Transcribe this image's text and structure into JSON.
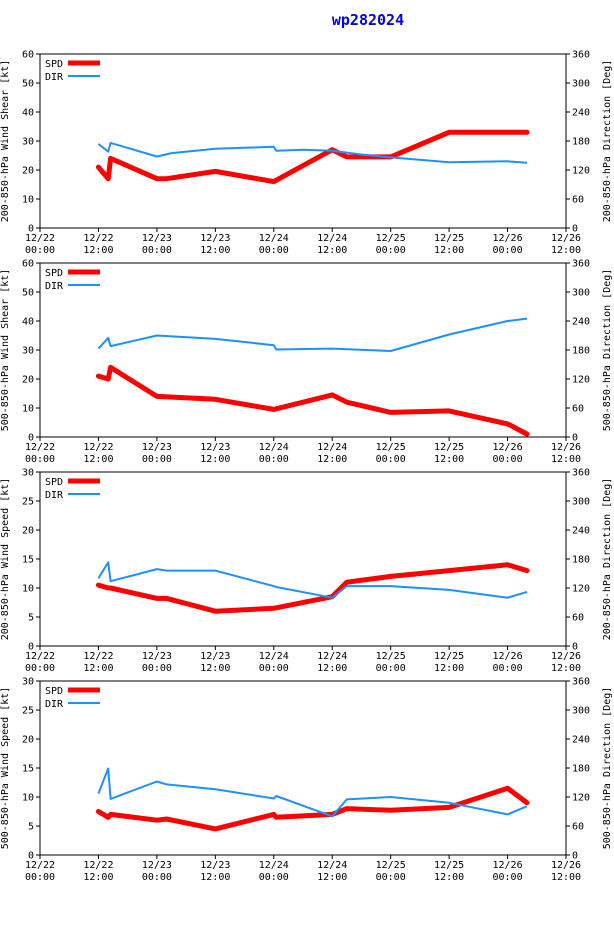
{
  "title": "wp282024",
  "colors": {
    "spd": "#ff0000",
    "dir": "#1e90ff",
    "title": "#0000ee"
  },
  "legend": {
    "spd": "SPD",
    "dir": "DIR"
  },
  "x_ticks": [
    {
      "t": 0,
      "l1": "12/22",
      "l2": "00:00"
    },
    {
      "t": 12,
      "l1": "12/22",
      "l2": "12:00"
    },
    {
      "t": 24,
      "l1": "12/23",
      "l2": "00:00"
    },
    {
      "t": 36,
      "l1": "12/23",
      "l2": "12:00"
    },
    {
      "t": 48,
      "l1": "12/24",
      "l2": "00:00"
    },
    {
      "t": 60,
      "l1": "12/24",
      "l2": "12:00"
    },
    {
      "t": 72,
      "l1": "12/25",
      "l2": "00:00"
    },
    {
      "t": 84,
      "l1": "12/25",
      "l2": "12:00"
    },
    {
      "t": 96,
      "l1": "12/26",
      "l2": "00:00"
    },
    {
      "t": 108,
      "l1": "12/26",
      "l2": "12:00"
    }
  ],
  "chart_data": [
    {
      "type": "line",
      "title": "wp282024",
      "ylabel": "200-850-hPa Wind Shear [kt]",
      "y2label": "200-850-hPa Direction [Deg]",
      "xlim": [
        0,
        108
      ],
      "ylim": [
        0,
        60
      ],
      "y_ticks": [
        0,
        10,
        20,
        30,
        40,
        50,
        60
      ],
      "y2lim": [
        0,
        360
      ],
      "y2_ticks": [
        0,
        60,
        120,
        180,
        240,
        300,
        360
      ],
      "series": [
        {
          "name": "SPD",
          "axis": "left",
          "x": [
            12,
            14,
            14.5,
            24,
            26,
            36,
            48,
            60,
            63,
            72,
            84,
            96,
            100
          ],
          "y": [
            21,
            17,
            24,
            17,
            17,
            19.5,
            16,
            27,
            24.5,
            24.5,
            33,
            33,
            33
          ]
        },
        {
          "name": "DIR",
          "axis": "right",
          "x": [
            12,
            14,
            14.5,
            24,
            27,
            36,
            48,
            48.5,
            54,
            60,
            66,
            72,
            84,
            96,
            100
          ],
          "y": [
            174,
            158,
            176,
            148,
            155,
            164,
            168,
            160,
            162,
            160,
            152,
            146,
            136,
            138,
            135
          ]
        }
      ]
    },
    {
      "type": "line",
      "ylabel": "500-850-hPa Wind Shear [kt]",
      "y2label": "500-850-hPa Direction [Deg]",
      "xlim": [
        0,
        108
      ],
      "ylim": [
        0,
        60
      ],
      "y_ticks": [
        0,
        10,
        20,
        30,
        40,
        50,
        60
      ],
      "y2lim": [
        0,
        360
      ],
      "y2_ticks": [
        0,
        60,
        120,
        180,
        240,
        300,
        360
      ],
      "series": [
        {
          "name": "SPD",
          "axis": "left",
          "x": [
            12,
            14,
            14.5,
            24,
            36,
            48,
            60,
            63,
            72,
            84,
            96,
            100
          ],
          "y": [
            21,
            20,
            24,
            14,
            13,
            9.5,
            14.5,
            12,
            8.5,
            9,
            4.5,
            1
          ]
        },
        {
          "name": "DIR",
          "axis": "right",
          "x": [
            12,
            14,
            14.5,
            24,
            36,
            48,
            48.5,
            60,
            72,
            84,
            96,
            100
          ],
          "y": [
            183,
            205,
            188,
            210,
            203,
            190,
            181,
            183,
            178,
            212,
            240,
            245
          ]
        }
      ]
    },
    {
      "type": "line",
      "ylabel": "200-850-hPa Wind Speed [kt]",
      "y2label": "200-850-hPa Direction [Deg]",
      "xlim": [
        0,
        108
      ],
      "ylim": [
        0,
        30
      ],
      "y_ticks": [
        0,
        5,
        10,
        15,
        20,
        25,
        30
      ],
      "y2lim": [
        0,
        360
      ],
      "y2_ticks": [
        0,
        60,
        120,
        180,
        240,
        300,
        360
      ],
      "series": [
        {
          "name": "SPD",
          "axis": "left",
          "x": [
            12,
            14,
            14.5,
            24,
            26,
            36,
            48,
            60,
            63,
            72,
            84,
            96,
            100
          ],
          "y": [
            10.5,
            10,
            10,
            8.2,
            8.2,
            6,
            6.5,
            8.5,
            11,
            12,
            13,
            14,
            13
          ]
        },
        {
          "name": "DIR",
          "axis": "right",
          "x": [
            12,
            14,
            14.5,
            24,
            26,
            36,
            48,
            48.5,
            60,
            63,
            72,
            84,
            96,
            100
          ],
          "y": [
            140,
            173,
            134,
            159,
            156,
            156,
            124,
            122,
            100,
            124,
            124,
            116,
            100,
            112
          ]
        }
      ]
    },
    {
      "type": "line",
      "ylabel": "500-850-hPa Wind Speed [kt]",
      "y2label": "500-850-hPa Direction [Deg]",
      "xlim": [
        0,
        108
      ],
      "ylim": [
        0,
        30
      ],
      "y_ticks": [
        0,
        5,
        10,
        15,
        20,
        25,
        30
      ],
      "y2lim": [
        0,
        360
      ],
      "y2_ticks": [
        0,
        60,
        120,
        180,
        240,
        300,
        360
      ],
      "series": [
        {
          "name": "SPD",
          "axis": "left",
          "x": [
            12,
            14,
            14.5,
            24,
            26,
            36,
            48,
            48.5,
            60,
            63,
            72,
            84,
            96,
            100
          ],
          "y": [
            7.5,
            6.5,
            7,
            6,
            6.2,
            4.5,
            7,
            6.5,
            7,
            8,
            7.7,
            8.2,
            11.5,
            9
          ]
        },
        {
          "name": "DIR",
          "axis": "right",
          "x": [
            12,
            14,
            14.5,
            24,
            26,
            36,
            48,
            48.5,
            60,
            63,
            72,
            84,
            96,
            100
          ],
          "y": [
            127,
            179,
            116,
            152,
            146,
            136,
            117,
            122,
            80,
            115,
            120,
            108,
            84,
            101
          ]
        }
      ]
    }
  ]
}
